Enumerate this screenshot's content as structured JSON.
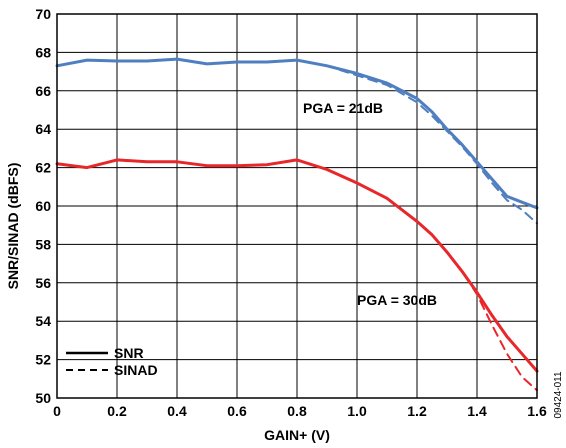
{
  "chart_data": {
    "type": "line",
    "xlabel": "GAIN+ (V)",
    "ylabel": "SNR/SINAD (dBFS)",
    "xlim": [
      0,
      1.6
    ],
    "ylim": [
      50,
      70
    ],
    "xticks": [
      "0",
      "0.2",
      "0.4",
      "0.6",
      "0.8",
      "1.0",
      "1.2",
      "1.4",
      "1.6"
    ],
    "yticks": [
      "50",
      "52",
      "54",
      "56",
      "58",
      "60",
      "62",
      "64",
      "66",
      "68",
      "70"
    ],
    "grid": true,
    "legend_position": "bottom-left",
    "legend": [
      {
        "label": "SNR",
        "style": "solid"
      },
      {
        "label": "SINAD",
        "style": "dashed"
      }
    ],
    "annotations": [
      "PGA = 21dB",
      "PGA = 30dB"
    ],
    "figure_id": "09424-011",
    "series": [
      {
        "group": "PGA = 21dB",
        "metric": "SNR",
        "color": "#4f7fc1",
        "style": "solid",
        "x": [
          0,
          0.1,
          0.2,
          0.3,
          0.4,
          0.5,
          0.6,
          0.7,
          0.8,
          0.9,
          1.0,
          1.1,
          1.2,
          1.25,
          1.3,
          1.35,
          1.4,
          1.45,
          1.5,
          1.55,
          1.6
        ],
        "y": [
          67.3,
          67.6,
          67.55,
          67.55,
          67.65,
          67.4,
          67.5,
          67.5,
          67.6,
          67.3,
          66.9,
          66.4,
          65.6,
          64.9,
          64.0,
          63.2,
          62.3,
          61.4,
          60.5,
          60.2,
          59.9
        ]
      },
      {
        "group": "PGA = 21dB",
        "metric": "SINAD",
        "color": "#4f7fc1",
        "style": "dashed",
        "x": [
          0,
          0.1,
          0.2,
          0.3,
          0.4,
          0.5,
          0.6,
          0.7,
          0.8,
          0.9,
          1.0,
          1.1,
          1.2,
          1.25,
          1.3,
          1.35,
          1.4,
          1.45,
          1.5,
          1.55,
          1.6
        ],
        "y": [
          67.3,
          67.6,
          67.55,
          67.55,
          67.65,
          67.4,
          67.5,
          67.5,
          67.6,
          67.3,
          66.8,
          66.3,
          65.4,
          64.7,
          63.9,
          63.1,
          62.2,
          61.2,
          60.3,
          59.8,
          59.1
        ]
      },
      {
        "group": "PGA = 30dB",
        "metric": "SNR",
        "color": "#e8272a",
        "style": "solid",
        "x": [
          0,
          0.1,
          0.2,
          0.3,
          0.4,
          0.5,
          0.6,
          0.7,
          0.8,
          0.9,
          1.0,
          1.1,
          1.2,
          1.25,
          1.3,
          1.35,
          1.4,
          1.45,
          1.5,
          1.55,
          1.6
        ],
        "y": [
          62.2,
          62.0,
          62.4,
          62.3,
          62.3,
          62.1,
          62.1,
          62.15,
          62.4,
          61.9,
          61.2,
          60.4,
          59.2,
          58.5,
          57.6,
          56.6,
          55.5,
          54.3,
          53.2,
          52.3,
          51.4
        ]
      },
      {
        "group": "PGA = 30dB",
        "metric": "SINAD",
        "color": "#e8272a",
        "style": "dashed",
        "x": [
          0,
          0.1,
          0.2,
          0.3,
          0.4,
          0.5,
          0.6,
          0.7,
          0.8,
          0.9,
          1.0,
          1.1,
          1.2,
          1.25,
          1.3,
          1.35,
          1.4,
          1.45,
          1.5,
          1.55,
          1.6
        ],
        "y": [
          62.2,
          62.0,
          62.4,
          62.3,
          62.3,
          62.1,
          62.1,
          62.15,
          62.4,
          61.9,
          61.2,
          60.4,
          59.2,
          58.5,
          57.6,
          56.6,
          55.4,
          53.8,
          52.3,
          51.1,
          50.4
        ]
      }
    ]
  }
}
